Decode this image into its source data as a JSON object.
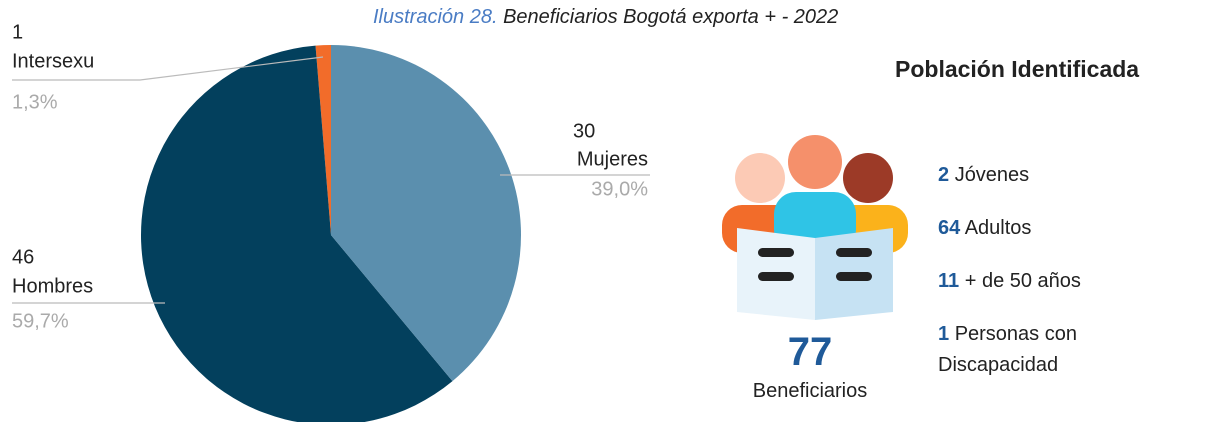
{
  "caption": {
    "label": "Ilustración 28.",
    "text": "Beneficiarios Bogotá exporta + - 2022"
  },
  "chart_data": {
    "type": "pie",
    "categories": [
      "Mujeres",
      "Hombres",
      "Intersexu"
    ],
    "values": [
      30,
      46,
      1
    ],
    "percent_labels": [
      "39,0%",
      "59,7%",
      "1,3%"
    ],
    "colors": [
      "#5b8fae",
      "#03405d",
      "#f26c2a"
    ]
  },
  "summary": {
    "title": "Población Identificada",
    "total": 77,
    "total_label": "Beneficiarios",
    "items": [
      {
        "value": 2,
        "label": "Jóvenes"
      },
      {
        "value": 64,
        "label": "Adultos"
      },
      {
        "value": 11,
        "label": "+ de 50 años"
      },
      {
        "value": 1,
        "label": "Personas con Discapacidad"
      }
    ]
  }
}
